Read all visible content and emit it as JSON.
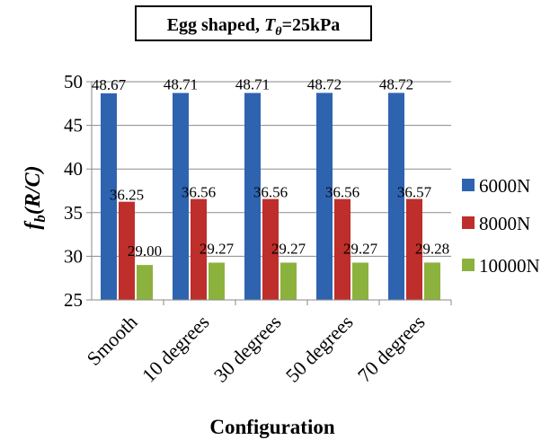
{
  "chart_data": {
    "type": "bar",
    "title_prefix": "Egg shaped, ",
    "title_symbol": "T",
    "title_subscript": "θ",
    "title_suffix": "=25kPa",
    "ylabel_main": "f",
    "ylabel_subscript": "b",
    "ylabel_rest": "(R/C)",
    "xlabel": "Configuration",
    "categories": [
      "Smooth",
      "10 degrees",
      "30 degrees",
      "50 degrees",
      "70 degrees"
    ],
    "ylim": [
      25,
      50
    ],
    "yticks": [
      25,
      30,
      35,
      40,
      45,
      50
    ],
    "grid": true,
    "legend_position": "right",
    "series": [
      {
        "name": "6000N",
        "color": "#2e63b0",
        "values": [
          48.67,
          48.71,
          48.71,
          48.72,
          48.72
        ],
        "labels": [
          "48.67",
          "48.71",
          "48.71",
          "48.72",
          "48.72"
        ]
      },
      {
        "name": "8000N",
        "color": "#be2e2b",
        "values": [
          36.25,
          36.56,
          36.56,
          36.56,
          36.57
        ],
        "labels": [
          "36.25",
          "36.56",
          "36.56",
          "36.56",
          "36.57"
        ]
      },
      {
        "name": "10000N",
        "color": "#8cb23e",
        "values": [
          29.0,
          29.27,
          29.27,
          29.27,
          29.28
        ],
        "labels": [
          "29.00",
          "29.27",
          "29.27",
          "29.27",
          "29.28"
        ]
      }
    ]
  }
}
